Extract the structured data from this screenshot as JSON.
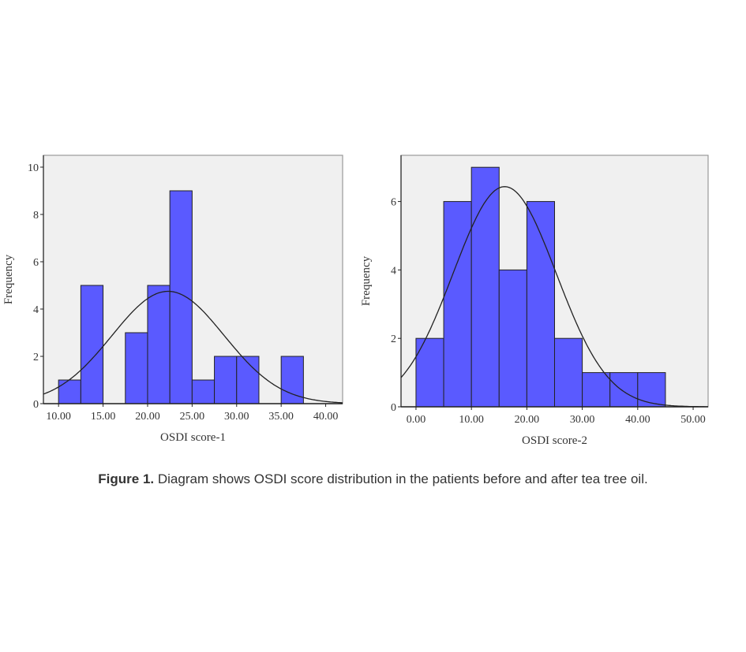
{
  "chart_data": [
    {
      "type": "bar",
      "subtype": "histogram",
      "xlabel": "OSDI score-1",
      "ylabel": "Frequency",
      "bin_width": 2.5,
      "bin_starts": [
        10,
        12.5,
        15,
        17.5,
        20,
        22.5,
        25,
        27.5,
        30,
        32.5,
        35
      ],
      "values": [
        1,
        5,
        0,
        3,
        5,
        9,
        1,
        2,
        2,
        0,
        2
      ],
      "xlim": [
        8.3,
        41.9
      ],
      "ylim": [
        0,
        10.5
      ],
      "xticks": [
        "10.00",
        "15.00",
        "20.00",
        "25.00",
        "30.00",
        "35.00",
        "40.00"
      ],
      "xtick_values": [
        10,
        15,
        20,
        25,
        30,
        35,
        40
      ],
      "yticks": [
        "0",
        "2",
        "4",
        "6",
        "8",
        "10"
      ],
      "ytick_values": [
        0,
        2,
        4,
        6,
        8,
        10
      ],
      "normal_curve": {
        "mean": 22.3,
        "sd": 6.3,
        "n": 30
      },
      "colors": {
        "bar": "#5a5aff",
        "background": "#f0f0f0",
        "curve": "#222222"
      }
    },
    {
      "type": "bar",
      "subtype": "histogram",
      "xlabel": "OSDI score-2",
      "ylabel": "Frequency",
      "bin_width": 5,
      "bin_starts": [
        0,
        5,
        10,
        15,
        20,
        25,
        30,
        35,
        40
      ],
      "values": [
        2,
        6,
        7,
        4,
        6,
        2,
        1,
        1,
        1
      ],
      "xlim": [
        -2.7,
        52.7
      ],
      "ylim": [
        0,
        7.35
      ],
      "xticks": [
        "0.00",
        "10.00",
        "20.00",
        "30.00",
        "40.00",
        "50.00"
      ],
      "xtick_values": [
        0,
        10,
        20,
        30,
        40,
        50
      ],
      "yticks": [
        "0",
        "2",
        "4",
        "6"
      ],
      "ytick_values": [
        0,
        2,
        4,
        6
      ],
      "normal_curve": {
        "mean": 16,
        "sd": 9.3,
        "n": 30
      },
      "colors": {
        "bar": "#5a5aff",
        "background": "#f0f0f0",
        "curve": "#222222"
      }
    }
  ],
  "caption": {
    "label": "Figure 1.",
    "text": " Diagram shows OSDI score distribution in the patients before and after tea tree oil."
  }
}
